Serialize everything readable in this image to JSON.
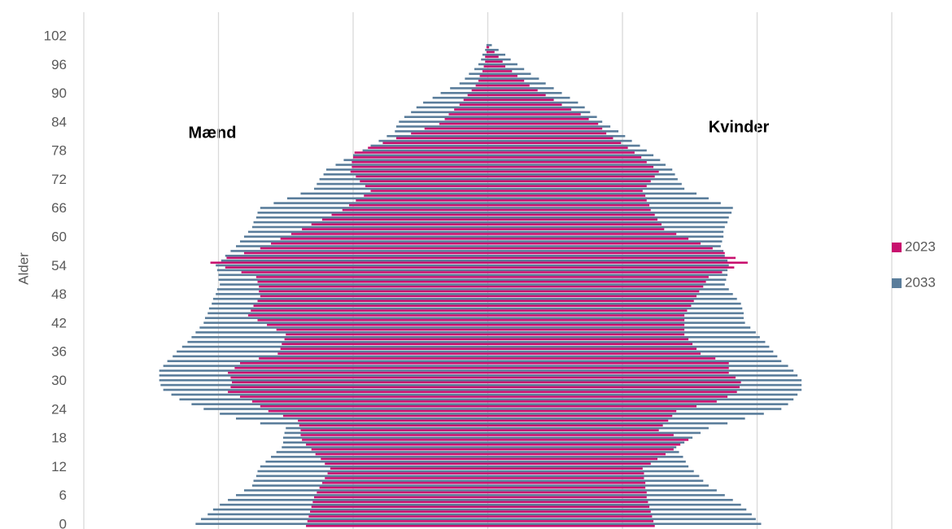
{
  "chart_data": {
    "type": "pyramid",
    "y_label": "Alder",
    "annotations": [
      "Mænd",
      "Kvinder"
    ],
    "categories": [
      0,
      1,
      2,
      3,
      4,
      5,
      6,
      7,
      8,
      9,
      10,
      11,
      12,
      13,
      14,
      15,
      16,
      17,
      18,
      19,
      20,
      21,
      22,
      23,
      24,
      25,
      26,
      27,
      28,
      29,
      30,
      31,
      32,
      33,
      34,
      35,
      36,
      37,
      38,
      39,
      40,
      41,
      42,
      43,
      44,
      45,
      46,
      47,
      48,
      49,
      50,
      51,
      52,
      53,
      54,
      55,
      56,
      57,
      58,
      59,
      60,
      61,
      62,
      63,
      64,
      65,
      66,
      67,
      68,
      69,
      70,
      71,
      72,
      73,
      74,
      75,
      76,
      77,
      78,
      79,
      80,
      81,
      82,
      83,
      84,
      85,
      86,
      87,
      88,
      89,
      90,
      91,
      92,
      93,
      94,
      95,
      96,
      97,
      98,
      99,
      100
    ],
    "ylim": [
      0,
      102
    ],
    "yticks": [
      0,
      6,
      12,
      18,
      24,
      30,
      36,
      42,
      48,
      54,
      60,
      66,
      72,
      78,
      84,
      90,
      96,
      102
    ],
    "xlim": [
      -30,
      30
    ],
    "xticks": [
      -30,
      -20,
      -10,
      0,
      10,
      20,
      30
    ],
    "grid": true,
    "legend": "right",
    "series": [
      {
        "name": "2023",
        "color": "#c8106e",
        "men": [
          -13.5,
          -13.4,
          -13.3,
          -13.2,
          -13.1,
          -13.0,
          -12.9,
          -12.7,
          -12.5,
          -12.3,
          -12.1,
          -11.9,
          -11.7,
          -12.1,
          -12.4,
          -12.8,
          -13.1,
          -13.5,
          -13.8,
          -13.9,
          -13.9,
          -14.0,
          -14.1,
          -15.2,
          -16.3,
          -16.9,
          -17.5,
          -18.4,
          -19.3,
          -19.1,
          -19.0,
          -19.1,
          -19.3,
          -18.8,
          -18.4,
          -17.0,
          -15.6,
          -15.4,
          -15.3,
          -15.1,
          -15.0,
          -15.7,
          -16.4,
          -17.1,
          -17.8,
          -17.6,
          -17.4,
          -17.1,
          -16.9,
          -17.0,
          -17.0,
          -17.1,
          -17.2,
          -18.3,
          -19.5,
          -20.6,
          -19.4,
          -18.1,
          -16.9,
          -16.1,
          -15.4,
          -14.6,
          -13.8,
          -13.1,
          -12.3,
          -11.6,
          -10.8,
          -10.3,
          -9.8,
          -9.2,
          -8.7,
          -9.1,
          -9.5,
          -9.8,
          -10.2,
          -10.1,
          -10.1,
          -10.0,
          -9.9,
          -8.9,
          -7.8,
          -6.8,
          -5.7,
          -4.7,
          -3.6,
          -3.2,
          -2.9,
          -2.5,
          -2.1,
          -1.8,
          -1.5,
          -1.2,
          -0.9,
          -0.7,
          -0.6,
          -0.4,
          -0.3,
          -0.2,
          -0.2,
          -0.1,
          -0.1
        ],
        "women": [
          12.4,
          12.3,
          12.2,
          12.1,
          12.0,
          11.9,
          11.8,
          11.8,
          11.7,
          11.7,
          11.6,
          11.6,
          11.5,
          12.1,
          12.6,
          13.2,
          13.8,
          14.3,
          14.9,
          13.8,
          12.7,
          13.0,
          13.4,
          13.7,
          14.0,
          15.5,
          17.0,
          17.8,
          18.5,
          18.7,
          18.8,
          18.4,
          17.9,
          17.9,
          17.9,
          16.9,
          15.8,
          15.5,
          15.2,
          14.9,
          14.6,
          14.6,
          14.6,
          14.6,
          14.6,
          14.8,
          15.1,
          15.3,
          15.5,
          15.7,
          16.0,
          16.2,
          16.4,
          17.4,
          18.3,
          19.3,
          18.4,
          17.6,
          16.7,
          15.8,
          14.9,
          14.0,
          13.1,
          12.9,
          12.6,
          12.4,
          12.1,
          12.0,
          11.8,
          11.7,
          11.5,
          11.8,
          12.1,
          12.4,
          12.7,
          12.3,
          11.8,
          11.4,
          10.9,
          10.4,
          9.9,
          9.3,
          8.8,
          8.5,
          8.2,
          7.5,
          6.9,
          6.2,
          5.5,
          4.9,
          4.3,
          3.7,
          3.1,
          2.7,
          2.2,
          1.8,
          1.3,
          1.1,
          0.8,
          0.5,
          0.1
        ]
      },
      {
        "name": "2033",
        "color": "#5a7d9b",
        "men": [
          -21.7,
          -21.3,
          -20.8,
          -20.4,
          -19.9,
          -19.3,
          -18.7,
          -18.1,
          -17.5,
          -17.4,
          -17.2,
          -17.1,
          -16.9,
          -16.5,
          -16.1,
          -15.7,
          -15.3,
          -15.2,
          -15.2,
          -15.1,
          -15.0,
          -16.9,
          -18.7,
          -19.9,
          -21.1,
          -22.0,
          -22.9,
          -23.5,
          -24.1,
          -24.3,
          -24.4,
          -24.4,
          -24.4,
          -24.1,
          -23.8,
          -23.4,
          -23.1,
          -22.7,
          -22.3,
          -22.0,
          -21.7,
          -21.4,
          -21.1,
          -21.0,
          -20.8,
          -20.7,
          -20.5,
          -20.4,
          -20.2,
          -20.1,
          -19.9,
          -20.0,
          -20.0,
          -20.1,
          -20.2,
          -19.8,
          -19.5,
          -19.1,
          -18.7,
          -18.4,
          -18.1,
          -17.8,
          -17.5,
          -17.4,
          -17.2,
          -17.1,
          -16.9,
          -15.9,
          -14.9,
          -13.9,
          -12.9,
          -12.7,
          -12.5,
          -12.2,
          -12.0,
          -11.3,
          -10.7,
          -10.0,
          -9.3,
          -8.7,
          -8.1,
          -7.5,
          -6.9,
          -6.8,
          -6.6,
          -6.2,
          -5.7,
          -5.3,
          -4.8,
          -4.1,
          -3.5,
          -2.8,
          -2.1,
          -1.7,
          -1.4,
          -1.0,
          -0.7,
          -0.5,
          -0.4,
          -0.2,
          -0.1
        ],
        "women": [
          20.3,
          19.9,
          19.6,
          19.2,
          18.8,
          18.2,
          17.6,
          17.0,
          16.4,
          16.0,
          15.7,
          15.3,
          14.9,
          14.7,
          14.5,
          14.2,
          14.0,
          14.6,
          15.2,
          15.8,
          16.4,
          17.8,
          19.1,
          20.5,
          21.8,
          22.3,
          22.7,
          23.0,
          23.3,
          23.3,
          23.3,
          23.0,
          22.7,
          22.3,
          21.8,
          21.5,
          21.2,
          20.9,
          20.6,
          20.2,
          19.9,
          19.5,
          19.1,
          19.0,
          19.0,
          18.9,
          18.8,
          18.5,
          18.2,
          17.9,
          17.6,
          17.7,
          17.8,
          17.8,
          17.9,
          17.8,
          17.6,
          17.5,
          17.3,
          17.4,
          17.5,
          17.5,
          17.6,
          17.8,
          17.9,
          18.1,
          18.2,
          17.3,
          16.4,
          15.5,
          14.6,
          14.4,
          14.1,
          13.9,
          13.7,
          13.2,
          12.8,
          12.3,
          11.8,
          11.3,
          10.7,
          10.2,
          9.7,
          9.1,
          8.5,
          8.1,
          7.6,
          7.2,
          6.7,
          6.1,
          5.5,
          4.9,
          4.3,
          3.8,
          3.2,
          2.7,
          2.2,
          1.7,
          1.3,
          0.8,
          0.3
        ]
      }
    ]
  }
}
